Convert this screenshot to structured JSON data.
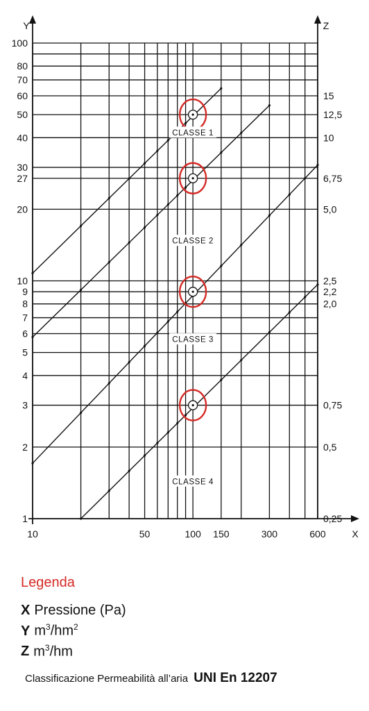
{
  "chart_data": {
    "type": "line",
    "x_scale": "log",
    "y_scale": "log",
    "xlim": [
      10,
      600
    ],
    "ylim": [
      1,
      100
    ],
    "xlabel": "X",
    "ylabel": "Y",
    "z_axis_label": "Z",
    "x_ticks": [
      {
        "value": 10,
        "label": "10"
      },
      {
        "value": 50,
        "label": "50"
      },
      {
        "value": 100,
        "label": "100"
      },
      {
        "value": 150,
        "label": "150"
      },
      {
        "value": 300,
        "label": "300"
      },
      {
        "value": 600,
        "label": "600"
      }
    ],
    "x_grid": [
      10,
      20,
      30,
      40,
      50,
      60,
      70,
      80,
      90,
      100,
      150,
      200,
      300,
      400,
      500,
      600
    ],
    "y_ticks": [
      {
        "value": 1,
        "label": "1"
      },
      {
        "value": 2,
        "label": "2"
      },
      {
        "value": 3,
        "label": "3"
      },
      {
        "value": 4,
        "label": "4"
      },
      {
        "value": 5,
        "label": "5"
      },
      {
        "value": 6,
        "label": "6"
      },
      {
        "value": 7,
        "label": "7"
      },
      {
        "value": 8,
        "label": "8"
      },
      {
        "value": 9,
        "label": "9"
      },
      {
        "value": 10,
        "label": "10"
      },
      {
        "value": 20,
        "label": "20"
      },
      {
        "value": 27,
        "label": "27"
      },
      {
        "value": 30,
        "label": "30"
      },
      {
        "value": 40,
        "label": "40"
      },
      {
        "value": 50,
        "label": "50"
      },
      {
        "value": 60,
        "label": "60"
      },
      {
        "value": 70,
        "label": "70"
      },
      {
        "value": 80,
        "label": "80"
      },
      {
        "value": 100,
        "label": "100"
      }
    ],
    "y_grid": [
      1,
      2,
      3,
      4,
      5,
      6,
      7,
      8,
      9,
      10,
      20,
      27,
      30,
      40,
      50,
      60,
      70,
      80,
      90,
      100
    ],
    "z_ticks": [
      {
        "y": 60,
        "label": "15"
      },
      {
        "y": 50,
        "label": "12,5"
      },
      {
        "y": 40,
        "label": "10"
      },
      {
        "y": 27,
        "label": "6,75"
      },
      {
        "y": 20,
        "label": "5,0"
      },
      {
        "y": 10,
        "label": "2,5"
      },
      {
        "y": 9,
        "label": "2,2"
      },
      {
        "y": 8,
        "label": "2,0"
      },
      {
        "y": 3,
        "label": "0,75"
      },
      {
        "y": 2,
        "label": "0,5"
      },
      {
        "y": 1,
        "label": "0,25"
      }
    ],
    "series": [
      {
        "x": [
          10,
          150
        ],
        "y": [
          10.77,
          64.5
        ]
      },
      {
        "x": [
          10,
          300
        ],
        "y": [
          5.8,
          54.7
        ]
      },
      {
        "x": [
          10,
          600
        ],
        "y": [
          1.71,
          30.7
        ]
      },
      {
        "x": [
          20,
          600
        ],
        "y": [
          1.0,
          9.65
        ]
      }
    ],
    "class_labels": [
      {
        "text": "CLASSE 1",
        "x": 100,
        "y": 42.2
      },
      {
        "text": "CLASSE 2",
        "x": 100,
        "y": 14.8
      },
      {
        "text": "CLASSE 3",
        "x": 100,
        "y": 5.7
      },
      {
        "text": "CLASSE 4",
        "x": 100,
        "y": 1.44
      }
    ],
    "markers": [
      {
        "x": 100,
        "y": 50
      },
      {
        "x": 100,
        "y": 27
      },
      {
        "x": 100,
        "y": 9
      },
      {
        "x": 100,
        "y": 3
      }
    ],
    "colors": {
      "ink": "#111111",
      "highlight": "#d42a25"
    }
  },
  "legend": {
    "title": "Legenda",
    "x_key": "X",
    "x_desc": "Pressione (Pa)",
    "y_key": "Y",
    "y_unit_a": "m",
    "y_unit_sup": "3",
    "y_unit_b": "/hm",
    "y_unit_sup2": "2",
    "z_key": "Z",
    "z_unit_a": "m",
    "z_unit_sup": "3",
    "z_unit_b": "/hm"
  },
  "caption": {
    "text": "Classificazione Permeabilità all’aria",
    "standard": "UNI En 12207"
  }
}
